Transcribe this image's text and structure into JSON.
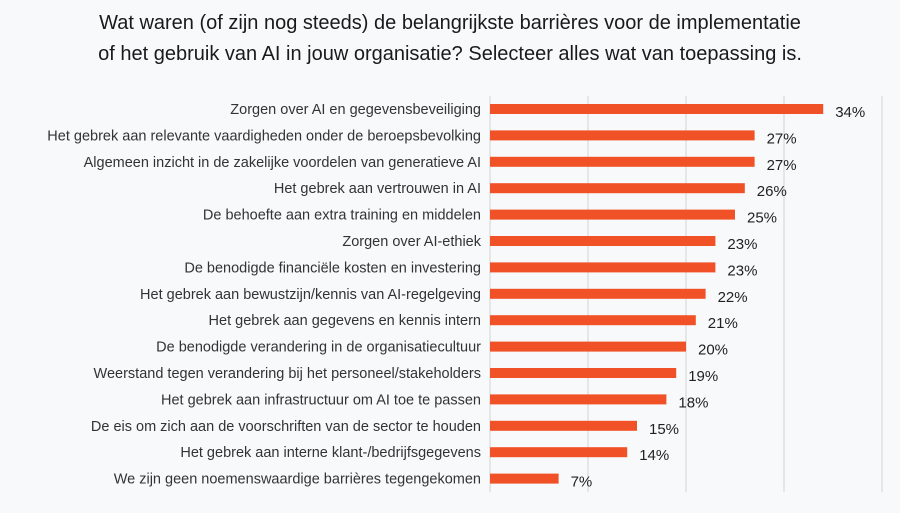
{
  "chart_data": {
    "type": "bar",
    "orientation": "horizontal",
    "title": [
      "Wat waren (of zijn nog steeds) de belangrijkste barrières voor de implementatie",
      "of het gebruik van AI in jouw organisatie? Selecteer alles wat van toepassing is."
    ],
    "categories": [
      "Zorgen over AI en gegevensbeveiliging",
      "Het gebrek aan relevante vaardigheden onder de beroepsbevolking",
      "Algemeen inzicht in de zakelijke voordelen van generatieve AI",
      "Het gebrek aan vertrouwen in AI",
      "De behoefte aan extra training en middelen",
      "Zorgen over AI-ethiek",
      "De benodigde financiële kosten en investering",
      "Het gebrek aan bewustzijn/kennis van AI-regelgeving",
      "Het gebrek aan gegevens en kennis intern",
      "De benodigde verandering in de organisatiecultuur",
      "Weerstand tegen verandering bij het personeel/stakeholders",
      "Het gebrek aan infrastructuur om AI toe te passen",
      "De eis om zich aan de voorschriften van de sector te houden",
      "Het gebrek aan interne klant-/bedrijfsgegevens",
      "We zijn geen noemenswaardige barrières tegengekomen"
    ],
    "values": [
      34,
      27,
      27,
      26,
      25,
      23,
      23,
      22,
      21,
      20,
      19,
      18,
      15,
      14,
      7
    ],
    "value_labels": [
      "34%",
      "27%",
      "27%",
      "26%",
      "25%",
      "23%",
      "23%",
      "22%",
      "21%",
      "20%",
      "19%",
      "18%",
      "15%",
      "14%",
      "7%"
    ],
    "xlim": [
      0,
      40
    ],
    "grid": true,
    "gridlines": [
      0,
      10,
      20,
      30,
      40
    ],
    "bar_color": "#f05127",
    "grid_color": "#d9d9d9"
  }
}
